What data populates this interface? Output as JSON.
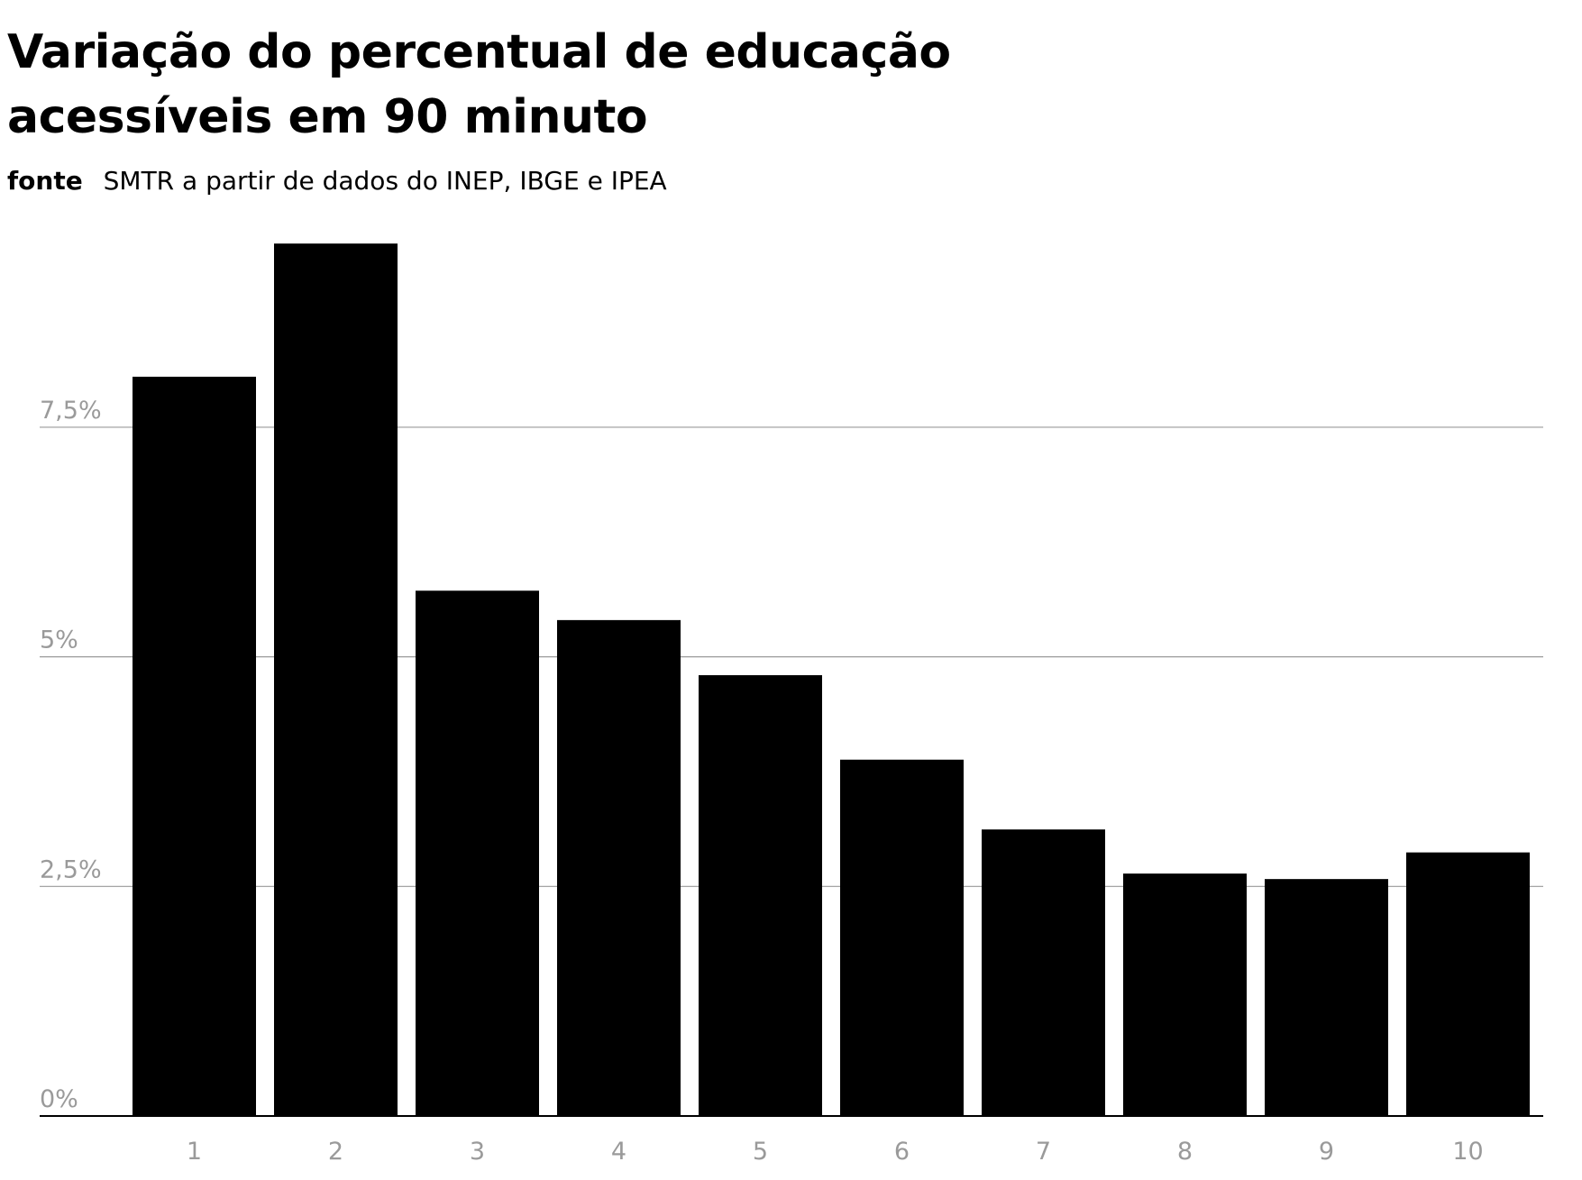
{
  "header": {
    "title": "Variação do percentual de educação acessíveis em 90 minuto",
    "source_label": "fonte",
    "source_text": "SMTR a partir de dados do INEP, IBGE e IPEA"
  },
  "chart_data": {
    "type": "bar",
    "title": "Variação do percentual de educação acessíveis em 90 minuto",
    "xlabel": "",
    "ylabel": "",
    "categories": [
      "1",
      "2",
      "3",
      "4",
      "5",
      "6",
      "7",
      "8",
      "9",
      "10"
    ],
    "values": [
      8.05,
      9.5,
      5.72,
      5.4,
      4.8,
      3.88,
      3.12,
      2.64,
      2.58,
      2.87
    ],
    "ylim": [
      0,
      9.6
    ],
    "yticks": [
      {
        "value": 0,
        "label": "0%"
      },
      {
        "value": 2.5,
        "label": "2,5%"
      },
      {
        "value": 5,
        "label": "5%"
      },
      {
        "value": 7.5,
        "label": "7,5%"
      }
    ],
    "grid": true,
    "legend": "none",
    "colors": {
      "bar": "#000000",
      "grid": "#9a9a9a",
      "axis": "#000000",
      "tick_label": "#9a9a9a"
    }
  }
}
